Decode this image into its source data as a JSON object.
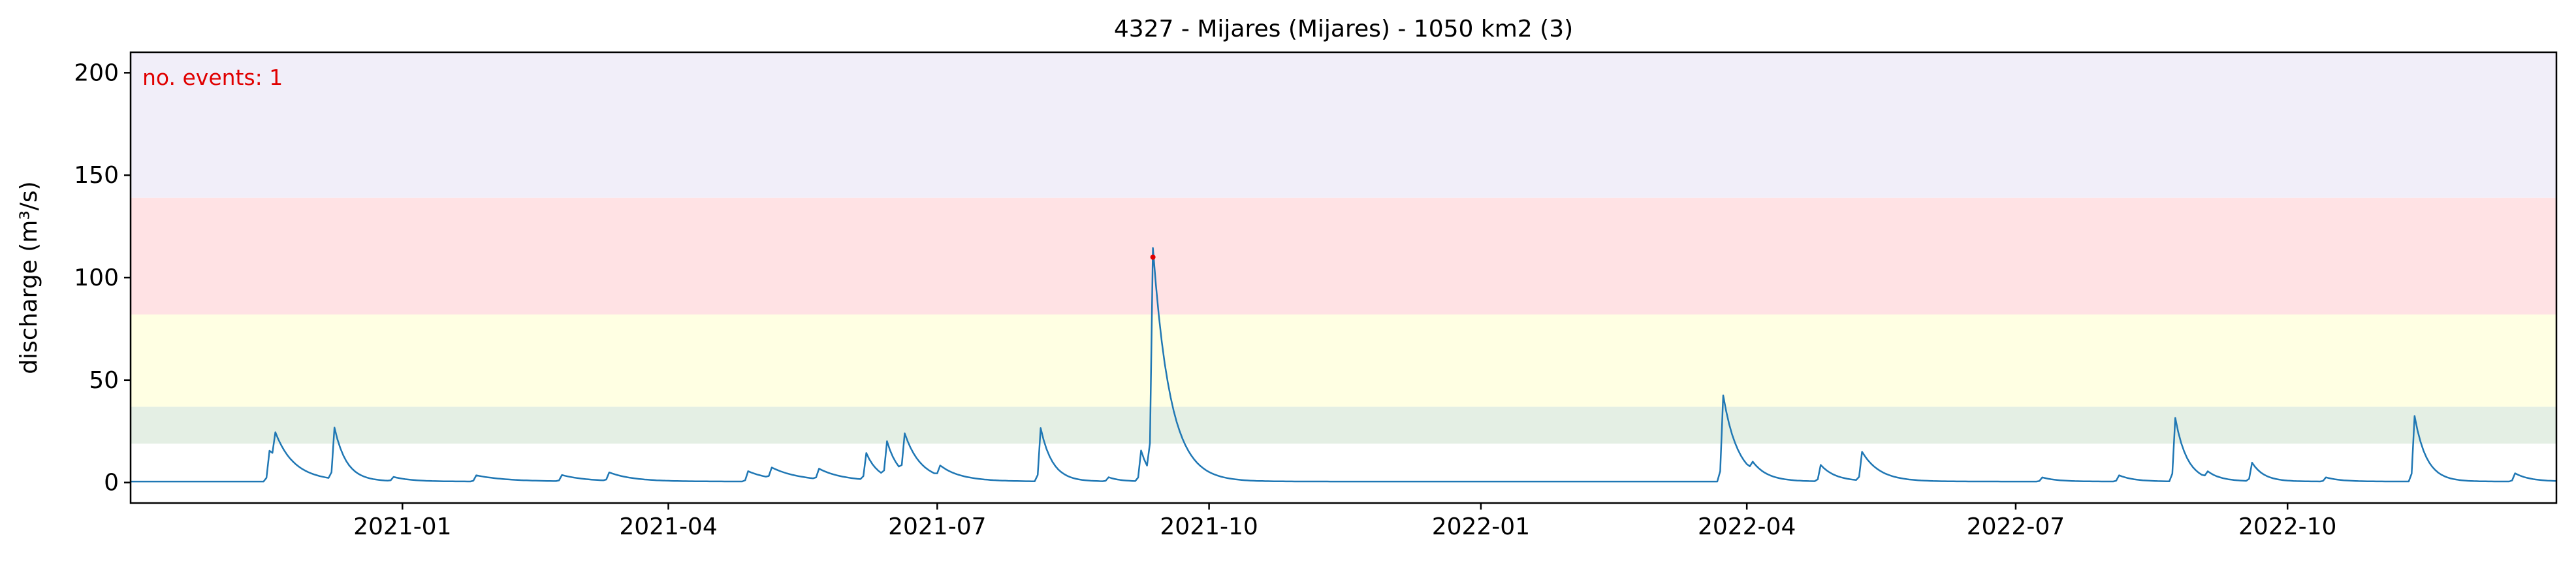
{
  "chart_data": {
    "type": "line",
    "title": "4327 - Mijares (Mijares) - 1050 km2 (3)",
    "xlabel": "",
    "ylabel": "discharge (m³/s)",
    "xlim": [
      "2020-10-01",
      "2022-12-31"
    ],
    "ylim": [
      -10,
      210
    ],
    "yticks": [
      0,
      50,
      100,
      150,
      200
    ],
    "xticks": [
      "2021-01",
      "2021-04",
      "2021-07",
      "2021-10",
      "2022-01",
      "2022-04",
      "2022-07",
      "2022-10"
    ],
    "bands": [
      {
        "from": 19,
        "to": 37,
        "color": "#e4efe4"
      },
      {
        "from": 37,
        "to": 82,
        "color": "#ffffe3"
      },
      {
        "from": 82,
        "to": 139,
        "color": "#ffe2e4"
      },
      {
        "from": 139,
        "to": 210,
        "color": "#f1eef9"
      }
    ],
    "annotation": {
      "text": "no. events: 1",
      "color": "#e00000"
    },
    "line_color": "#1f77b4",
    "event_marker_color": "#e00000",
    "baseline": 0.5,
    "peaks": [
      {
        "date": "2020-11-17",
        "value": 15,
        "duration": 5
      },
      {
        "date": "2020-11-19",
        "value": 14,
        "duration": 8
      },
      {
        "date": "2020-12-09",
        "value": 25,
        "duration": 4
      },
      {
        "date": "2020-12-29",
        "value": 2,
        "duration": 6
      },
      {
        "date": "2021-01-26",
        "value": 3,
        "duration": 10
      },
      {
        "date": "2021-02-24",
        "value": 3,
        "duration": 8
      },
      {
        "date": "2021-03-12",
        "value": 4,
        "duration": 8
      },
      {
        "date": "2021-04-28",
        "value": 5,
        "duration": 8
      },
      {
        "date": "2021-05-06",
        "value": 5,
        "duration": 10
      },
      {
        "date": "2021-05-22",
        "value": 5,
        "duration": 8
      },
      {
        "date": "2021-06-07",
        "value": 13,
        "duration": 4
      },
      {
        "date": "2021-06-14",
        "value": 17,
        "duration": 4
      },
      {
        "date": "2021-06-20",
        "value": 19,
        "duration": 6
      },
      {
        "date": "2021-07-02",
        "value": 5,
        "duration": 8
      },
      {
        "date": "2021-08-05",
        "value": 26,
        "duration": 4
      },
      {
        "date": "2021-08-28",
        "value": 2,
        "duration": 4
      },
      {
        "date": "2021-09-08",
        "value": 15,
        "duration": 3
      },
      {
        "date": "2021-09-12",
        "value": 110,
        "duration": 6
      },
      {
        "date": "2022-03-24",
        "value": 42,
        "duration": 5
      },
      {
        "date": "2022-04-03",
        "value": 4,
        "duration": 5
      },
      {
        "date": "2022-04-26",
        "value": 8,
        "duration": 5
      },
      {
        "date": "2022-05-10",
        "value": 14,
        "duration": 6
      },
      {
        "date": "2022-07-10",
        "value": 2,
        "duration": 5
      },
      {
        "date": "2022-08-05",
        "value": 3,
        "duration": 5
      },
      {
        "date": "2022-08-24",
        "value": 31,
        "duration": 4
      },
      {
        "date": "2022-09-04",
        "value": 3,
        "duration": 5
      },
      {
        "date": "2022-09-19",
        "value": 9,
        "duration": 4
      },
      {
        "date": "2022-10-14",
        "value": 2,
        "duration": 5
      },
      {
        "date": "2022-11-13",
        "value": 32,
        "duration": 4
      },
      {
        "date": "2022-12-17",
        "value": 4,
        "duration": 5
      }
    ],
    "events": [
      {
        "date": "2021-09-12",
        "value": 110
      }
    ],
    "grid": false,
    "legend": "none"
  }
}
